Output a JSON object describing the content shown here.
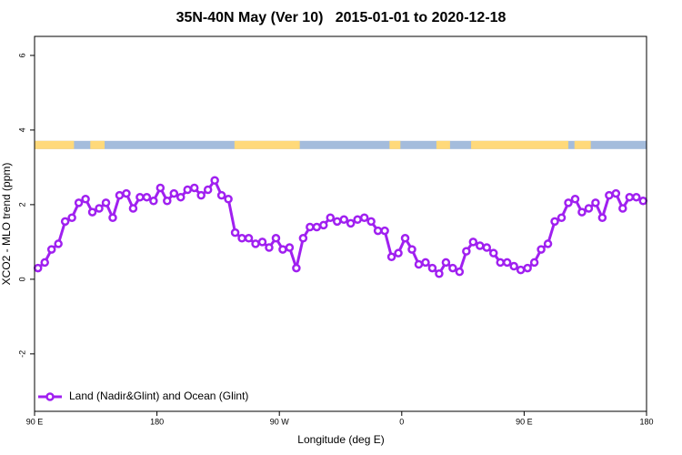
{
  "chart_data": {
    "type": "line",
    "title": "35N-40N May (Ver 10)   2015-01-01 to 2020-12-18",
    "xlabel": "Longitude (deg E)",
    "ylabel": "XCO2 - MLO trend (ppm)",
    "x": [
      92.5,
      97.5,
      102.5,
      107.5,
      112.5,
      117.5,
      122.5,
      127.5,
      132.5,
      137.5,
      142.5,
      147.5,
      152.5,
      157.5,
      162.5,
      167.5,
      172.5,
      177.5,
      182.5,
      187.5,
      192.5,
      197.5,
      202.5,
      207.5,
      212.5,
      217.5,
      222.5,
      227.5,
      232.5,
      237.5,
      242.5,
      247.5,
      252.5,
      257.5,
      262.5,
      267.5,
      272.5,
      277.5,
      282.5,
      287.5,
      292.5,
      297.5,
      302.5,
      307.5,
      312.5,
      317.5,
      322.5,
      327.5,
      332.5,
      337.5,
      342.5,
      347.5,
      352.5,
      357.5,
      362.5,
      367.5,
      372.5,
      377.5,
      382.5,
      387.5,
      392.5,
      397.5,
      402.5,
      407.5,
      412.5,
      417.5,
      422.5,
      427.5,
      432.5,
      437.5,
      442.5,
      447.5,
      452.5,
      457.5,
      462.5,
      467.5,
      472.5,
      477.5,
      482.5,
      487.5,
      492.5,
      497.5,
      502.5,
      507.5,
      512.5,
      517.5,
      522.5,
      527.5,
      532.5,
      537.5
    ],
    "series": [
      {
        "name": "Land (Nadir&Glint) and Ocean (Glint)",
        "color": "#a020f0",
        "values": [
          0.3,
          0.45,
          0.8,
          0.95,
          1.55,
          1.65,
          2.05,
          2.15,
          1.8,
          1.9,
          2.05,
          1.65,
          2.25,
          2.3,
          1.9,
          2.2,
          2.2,
          2.1,
          2.45,
          2.1,
          2.3,
          2.2,
          2.4,
          2.45,
          2.25,
          2.4,
          2.65,
          2.25,
          2.15,
          1.25,
          1.1,
          1.1,
          0.95,
          1.0,
          0.85,
          1.1,
          0.8,
          0.85,
          0.3,
          1.1,
          1.4,
          1.4,
          1.45,
          1.65,
          1.55,
          1.6,
          1.5,
          1.6,
          1.65,
          1.55,
          1.3,
          1.3,
          0.6,
          0.7,
          1.1,
          0.8,
          0.4,
          0.45,
          0.3,
          0.15,
          0.45,
          0.3,
          0.2,
          0.75,
          1.0,
          0.9,
          0.85,
          0.7,
          0.45,
          0.45,
          0.35,
          0.25,
          0.3,
          0.45,
          0.8,
          0.95,
          1.55,
          1.65,
          2.05,
          2.15,
          1.8,
          1.9,
          2.05,
          1.65,
          2.25,
          2.3,
          1.9,
          2.2,
          2.2,
          2.1
        ]
      }
    ],
    "xlim": [
      90,
      540
    ],
    "xticks": [
      {
        "value": 90,
        "label": "90 E"
      },
      180,
      {
        "value": 270,
        "label": "90 W"
      },
      {
        "value": 360,
        "label": "0"
      },
      {
        "value": 450,
        "label": "90 E"
      },
      {
        "value": 540,
        "label": "180"
      }
    ],
    "ylim": [
      -3.54,
      6.51
    ],
    "yticks": [
      -2,
      0,
      2,
      4,
      6
    ],
    "legend": "bottom-left",
    "land_band": {
      "ylim": [
        3.49,
        3.71
      ],
      "land_color": "#ffd97a",
      "ocean_color": "#a4bcdc",
      "land_spans": [
        [
          90,
          119
        ],
        [
          131,
          141.5
        ],
        [
          237,
          285
        ],
        [
          351,
          359
        ],
        [
          385.5,
          395.5
        ],
        [
          411,
          482.5
        ],
        [
          487,
          499
        ]
      ]
    }
  }
}
